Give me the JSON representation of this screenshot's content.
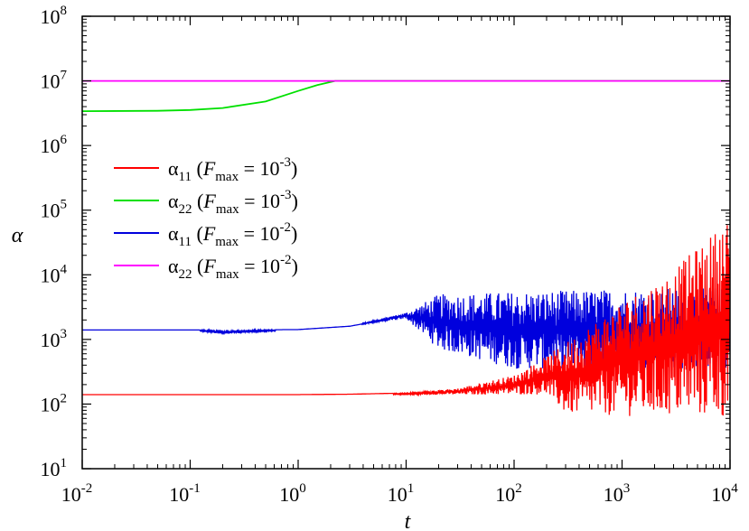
{
  "chart_data": {
    "type": "line",
    "title": "",
    "xlabel": "t",
    "ylabel": "α",
    "xscale": "log",
    "yscale": "log",
    "xlim": [
      0.01,
      10000
    ],
    "ylim": [
      10,
      100000000
    ],
    "grid": false,
    "legend_position": "center-left",
    "x_ticks": [
      {
        "base": "10",
        "exp": "-2"
      },
      {
        "base": "10",
        "exp": "-1"
      },
      {
        "base": "10",
        "exp": "0"
      },
      {
        "base": "10",
        "exp": "1"
      },
      {
        "base": "10",
        "exp": "2"
      },
      {
        "base": "10",
        "exp": "3"
      },
      {
        "base": "10",
        "exp": "4"
      }
    ],
    "y_ticks": [
      {
        "base": "10",
        "exp": "1"
      },
      {
        "base": "10",
        "exp": "2"
      },
      {
        "base": "10",
        "exp": "3"
      },
      {
        "base": "10",
        "exp": "4"
      },
      {
        "base": "10",
        "exp": "5"
      },
      {
        "base": "10",
        "exp": "6"
      },
      {
        "base": "10",
        "exp": "7"
      },
      {
        "base": "10",
        "exp": "8"
      }
    ],
    "series": [
      {
        "legend": {
          "sym": "α",
          "sub": "11",
          "F": "F",
          "Fsub": "max",
          "eq": " = 10",
          "exp": "-3"
        },
        "color": "#ff0000",
        "x": [
          0.01,
          0.1,
          1,
          3,
          10,
          30,
          100,
          200,
          300,
          1000,
          3000,
          10000
        ],
        "y": [
          140,
          140,
          140,
          142,
          148,
          175,
          280,
          550,
          500,
          500,
          500,
          500
        ],
        "y_lower": [
          140,
          140,
          140,
          140,
          140,
          140,
          140,
          140,
          70,
          65,
          65,
          60
        ],
        "y_upper": [
          140,
          140,
          140,
          142,
          148,
          175,
          280,
          550,
          900,
          4000,
          12000,
          80000
        ]
      },
      {
        "legend": {
          "sym": "α",
          "sub": "22",
          "F": "F",
          "Fsub": "max",
          "eq": " = 10",
          "exp": "-3"
        },
        "color": "#00e000",
        "x": [
          0.01,
          0.05,
          0.1,
          0.2,
          0.5,
          1,
          1.5,
          2.2,
          10,
          100,
          1000,
          10000
        ],
        "y": [
          3400000,
          3450000,
          3550000,
          3800000,
          4800000,
          7000000,
          8600000,
          10000000,
          10000000,
          10000000,
          10000000,
          10000000
        ]
      },
      {
        "legend": {
          "sym": "α",
          "sub": "11",
          "F": "F",
          "Fsub": "max",
          "eq": " = 10",
          "exp": "-2"
        },
        "color": "#0000dd",
        "x": [
          0.01,
          0.1,
          0.2,
          1,
          3,
          10,
          20,
          100,
          1000,
          10000
        ],
        "y": [
          1400,
          1400,
          1400,
          1420,
          1600,
          2300,
          2500,
          2200,
          2200,
          2200
        ],
        "y_lower": [
          1400,
          1400,
          1200,
          1420,
          1600,
          2100,
          700,
          350,
          350,
          350
        ],
        "y_upper": [
          1400,
          1400,
          1400,
          1420,
          1600,
          2600,
          5000,
          5500,
          6000,
          6500
        ]
      },
      {
        "legend": {
          "sym": "α",
          "sub": "22",
          "F": "F",
          "Fsub": "max",
          "eq": " = 10",
          "exp": "-2"
        },
        "color": "#ff00ff",
        "x": [
          0.01,
          10000
        ],
        "y": [
          10000000,
          10000000
        ]
      }
    ]
  }
}
